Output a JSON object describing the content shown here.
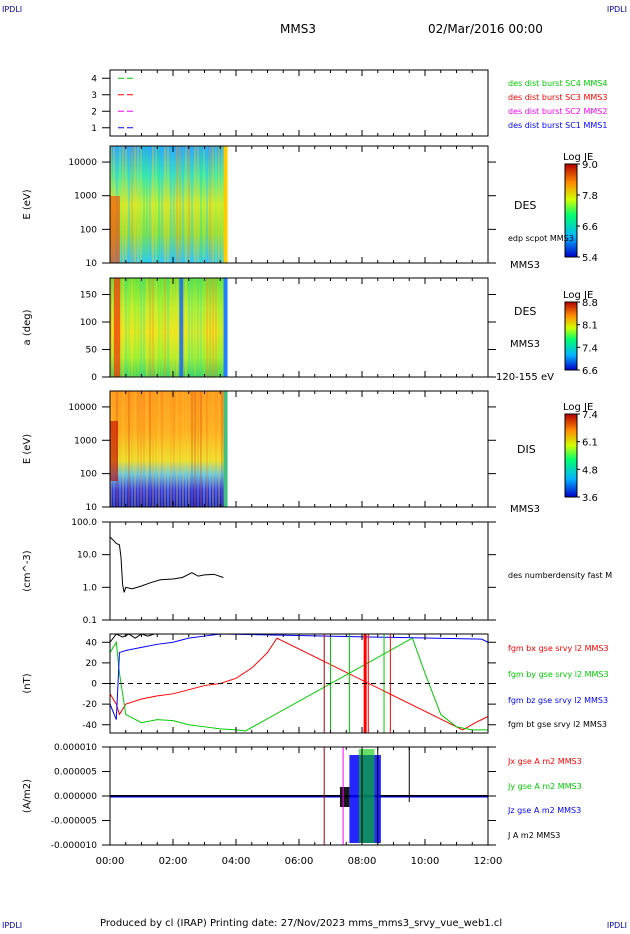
{
  "header": {
    "corner_tl": "IPDLI",
    "corner_tr": "IPDLI",
    "corner_bl": "IPDLI",
    "corner_br": "IPDLI",
    "spacecraft": "MMS3",
    "date": "02/Mar/2016 00:00"
  },
  "footer": "Produced by cl (IRAP)   Printing date: 27/Nov/2023   mms_mms3_srvy_vue_web1.cl",
  "colors": {
    "black": "#000000",
    "red": "#ff0000",
    "green": "#00cc00",
    "blue": "#0000ff",
    "magenta": "#ff00ff",
    "navy": "#0000aa"
  },
  "chart_data": [
    {
      "type": "line",
      "id": "sc_availability",
      "yticks": [
        "1",
        "2",
        "3",
        "4"
      ],
      "ylim": [
        0.5,
        4.5
      ],
      "series": [
        {
          "name": "des dist burst SC1 MMS1",
          "color": "#0000ff",
          "y": 1
        },
        {
          "name": "des dist burst SC2 MMS2",
          "color": "#ff00ff",
          "y": 2
        },
        {
          "name": "des dist burst SC3 MMS3",
          "color": "#ff0000",
          "y": 3
        },
        {
          "name": "des dist burst SC4 MMS4",
          "color": "#00cc00",
          "y": 4
        }
      ]
    },
    {
      "type": "heatmap",
      "id": "des_energy",
      "ylabel": "E (eV)",
      "yscale": "log",
      "ylim": [
        10,
        30000
      ],
      "yticks": [
        "10000",
        "1000",
        "100",
        "10"
      ],
      "xlim_hours": [
        0,
        12
      ],
      "data_end_hours": 3.7,
      "label": "DES",
      "sublabel": "edp scpot MMS3",
      "right_label": "MMS3",
      "colorbar": {
        "title": "Log JE",
        "ticks": [
          "9.0",
          "7.8",
          "6.6",
          "5.4"
        ]
      }
    },
    {
      "type": "heatmap",
      "id": "des_pitch",
      "ylabel": "a (deg)",
      "ylim": [
        0,
        180
      ],
      "yticks": [
        "150",
        "100",
        "50",
        "0"
      ],
      "xlim_hours": [
        0,
        12
      ],
      "data_end_hours": 3.7,
      "label": "DES",
      "sublabel": "MMS3",
      "energy_range": "120-155 eV",
      "colorbar": {
        "title": "Log JE",
        "ticks": [
          "8.8",
          "8.1",
          "7.4",
          "6.6"
        ]
      }
    },
    {
      "type": "heatmap",
      "id": "dis_energy",
      "ylabel": "E (eV)",
      "yscale": "log",
      "ylim": [
        10,
        30000
      ],
      "yticks": [
        "10000",
        "1000",
        "100",
        "10"
      ],
      "xlim_hours": [
        0,
        12
      ],
      "data_end_hours": 3.7,
      "label": "DIS",
      "right_label": "MMS3",
      "colorbar": {
        "title": "Log JE",
        "ticks": [
          "7.4",
          "6.1",
          "4.8",
          "3.6"
        ]
      }
    },
    {
      "type": "line",
      "id": "density",
      "ylabel": "(cm^-3)",
      "yscale": "log",
      "ylim": [
        0.1,
        100
      ],
      "yticks": [
        "100.0",
        "10.0",
        "1.0",
        "0.1"
      ],
      "xlim_hours": [
        0,
        12
      ],
      "series": [
        {
          "name": "des numberdensity fast M",
          "color": "#000000",
          "x": [
            0,
            0.1,
            0.2,
            0.3,
            0.35,
            0.4,
            0.45,
            0.5,
            0.7,
            1.0,
            1.3,
            1.6,
            2.0,
            2.3,
            2.6,
            2.8,
            3.0,
            3.3,
            3.6
          ],
          "y": [
            35,
            28,
            22,
            20,
            8,
            1.2,
            0.7,
            1.0,
            0.9,
            1.1,
            1.4,
            1.7,
            1.8,
            2.0,
            2.8,
            2.2,
            2.4,
            2.5,
            2.0
          ]
        }
      ]
    },
    {
      "type": "line",
      "id": "magnetic_field",
      "ylabel": "(nT)",
      "ylim": [
        -48,
        48
      ],
      "yticks": [
        "40",
        "20",
        "0",
        "-20",
        "-40"
      ],
      "xlim_hours": [
        0,
        12
      ],
      "series": [
        {
          "name": "fgm bx gse srvy l2 MMS3",
          "color": "#ff0000",
          "x": [
            0,
            0.2,
            0.3,
            0.5,
            1.0,
            1.5,
            2.0,
            2.5,
            3.0,
            3.5,
            4.0,
            4.5,
            5.0,
            5.3,
            11.2,
            11.6,
            12.0
          ],
          "y": [
            -10,
            -20,
            -30,
            -20,
            -15,
            -12,
            -10,
            -6,
            -2,
            0,
            5,
            15,
            30,
            44,
            -45,
            -38,
            -32
          ]
        },
        {
          "name": "fgm by gse srvy l2 MMS3",
          "color": "#00cc00",
          "x": [
            0,
            0.2,
            0.3,
            0.5,
            1.0,
            1.5,
            2.0,
            2.5,
            3.0,
            3.5,
            4.0,
            4.3,
            9.6,
            10.0,
            10.5,
            11.0,
            11.5,
            12.0
          ],
          "y": [
            30,
            40,
            10,
            -30,
            -38,
            -35,
            -36,
            -40,
            -42,
            -44,
            -45,
            -46,
            44,
            10,
            -30,
            -42,
            -45,
            -45
          ]
        },
        {
          "name": "fgm bz gse srvy l2 MMS3",
          "color": "#0000ff",
          "x": [
            0,
            0.2,
            0.3,
            0.5,
            1.0,
            1.5,
            2.0,
            2.5,
            3.0,
            3.5,
            11.8,
            12.0
          ],
          "y": [
            -20,
            -35,
            30,
            32,
            35,
            38,
            40,
            44,
            46,
            48,
            43,
            40
          ]
        },
        {
          "name": "fgm bt gse srvy l2 MMS3",
          "color": "#000000",
          "x": [
            0,
            0.2,
            0.4,
            0.6,
            0.8,
            1.0,
            1.2,
            1.4
          ],
          "y": [
            40,
            48,
            45,
            48,
            44,
            48,
            46,
            48
          ]
        }
      ]
    },
    {
      "type": "line",
      "id": "current_density",
      "ylabel": "(A/m2)",
      "ylim": [
        -1e-05,
        1e-05
      ],
      "yticks": [
        "0.000010",
        "0.000005",
        "0.000000",
        "-0.000005",
        "-0.000010"
      ],
      "xticks": [
        "00:00",
        "02:00",
        "04:00",
        "06:00",
        "08:00",
        "10:00",
        "12:00"
      ],
      "xlim_hours": [
        0,
        12
      ],
      "series": [
        {
          "name": "Jx gse A m2 MMS3",
          "color": "#ff0000"
        },
        {
          "name": "Jy gse A m2 MMS3",
          "color": "#00cc00"
        },
        {
          "name": "Jz gse A m2 MMS3",
          "color": "#0000ff"
        },
        {
          "name": "J A m2 MMS3",
          "color": "#000000"
        }
      ]
    }
  ]
}
